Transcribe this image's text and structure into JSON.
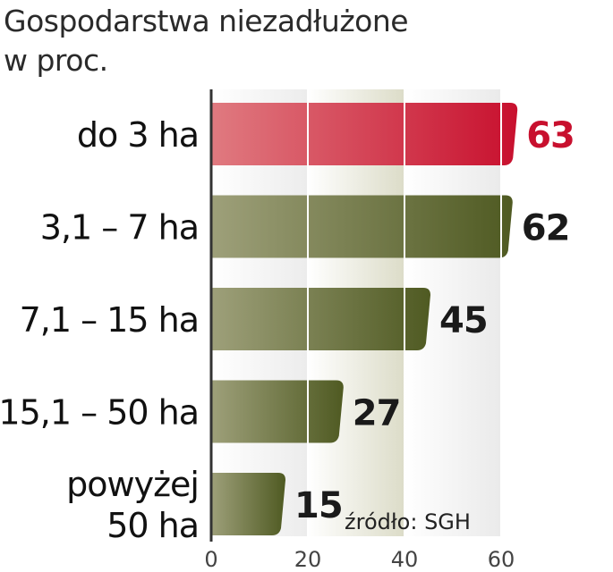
{
  "chart_data": {
    "type": "bar",
    "orientation": "horizontal",
    "title": "Gospodarstwa niezadłużone",
    "subtitle": "w proc.",
    "categories": [
      "do 3 ha",
      "3,1 – 7 ha",
      "7,1 – 15 ha",
      "15,1 – 50 ha",
      "powyżej 50 ha"
    ],
    "category_lines": [
      [
        "do 3 ha"
      ],
      [
        "3,1 – 7 ha"
      ],
      [
        "7,1 – 15 ha"
      ],
      [
        "15,1 – 50 ha"
      ],
      [
        "powyżej",
        "50 ha"
      ]
    ],
    "values": [
      63,
      62,
      45,
      27,
      15
    ],
    "xlim": [
      0,
      60
    ],
    "xticks": [
      0,
      20,
      40,
      60
    ],
    "highlight_index": 0,
    "source": "źródło: SGH",
    "grid": true
  },
  "colors": {
    "highlight_bar_start": "#e07a80",
    "highlight_bar_end": "#c8102e",
    "highlight_text": "#c8102e",
    "bar_start": "#9ea07a",
    "bar_end": "#4f5a22",
    "value_text": "#1a1a1a",
    "band_left": "#ececec",
    "band_middle": "#dcdcc8",
    "band_right": "#eaeaea",
    "axis": "#333333"
  }
}
